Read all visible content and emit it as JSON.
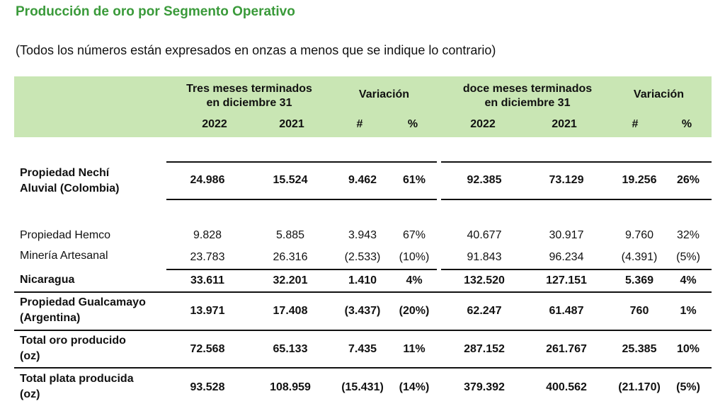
{
  "title": "Producción de oro por Segmento Operativo",
  "subtitle": "(Todos los números están expresados en onzas a menos que se indique lo contrario)",
  "header": {
    "group1_line1": "Tres meses terminados",
    "group1_line2": "en diciembre 31",
    "variation1": "Variación",
    "group2_line1": "doce meses terminados",
    "group2_line2": "en diciembre 31",
    "variation2": "Variación",
    "columns": [
      "2022",
      "2021",
      "#",
      "%",
      "2022",
      "2021",
      "#",
      "%"
    ]
  },
  "rows": [
    {
      "label_line1": "Propiedad Nechí",
      "label_line2": "Aluvial (Colombia)",
      "bold": true,
      "values": [
        "24.986",
        "15.524",
        "9.462",
        "61%",
        "92.385",
        "73.129",
        "19.256",
        "26%"
      ]
    },
    {
      "label_line1": "Propiedad Hemco",
      "label_line2": "",
      "bold": false,
      "values": [
        "9.828",
        "5.885",
        "3.943",
        "67%",
        "40.677",
        "30.917",
        "9.760",
        "32%"
      ]
    },
    {
      "label_line1": "Minería Artesanal",
      "label_line2": "",
      "bold": false,
      "values": [
        "23.783",
        "26.316",
        "(2.533)",
        "(10%)",
        "91.843",
        "96.234",
        "(4.391)",
        "(5%)"
      ]
    },
    {
      "label_line1": "Nicaragua",
      "label_line2": "",
      "bold": true,
      "values": [
        "33.611",
        "32.201",
        "1.410",
        "4%",
        "132.520",
        "127.151",
        "5.369",
        "4%"
      ]
    },
    {
      "label_line1": "Propiedad Gualcamayo",
      "label_line2": "(Argentina)",
      "bold": true,
      "values": [
        "13.971",
        "17.408",
        "(3.437)",
        "(20%)",
        "62.247",
        "61.487",
        "760",
        "1%"
      ]
    },
    {
      "label_line1": "Total oro producido",
      "label_line2": "(oz)",
      "bold": true,
      "values": [
        "72.568",
        "65.133",
        "7.435",
        "11%",
        "287.152",
        "261.767",
        "25.385",
        "10%"
      ]
    },
    {
      "label_line1": "Total plata producida",
      "label_line2": "(oz)",
      "bold": true,
      "values": [
        "93.528",
        "108.959",
        "(15.431)",
        "(14%)",
        "379.392",
        "400.562",
        "(21.170)",
        "(5%)"
      ]
    }
  ]
}
